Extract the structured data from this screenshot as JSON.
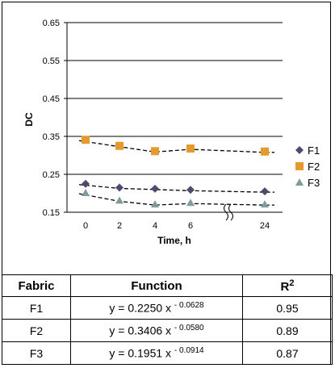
{
  "chart_data": {
    "type": "scatter",
    "xlabel": "Time, h",
    "ylabel": "DC",
    "x_tick_labels": [
      "0",
      "2",
      "4",
      "6",
      "24"
    ],
    "y_ticks": [
      "0.65",
      "0.55",
      "0.45",
      "0.35",
      "0.25",
      "0.15"
    ],
    "ylim": [
      0.15,
      0.65
    ],
    "x_axis_break": "between 6 and 24",
    "grid": "horizontal",
    "legend_position": "right",
    "series": [
      {
        "name": "F1",
        "marker": "diamond",
        "color": "#4f4a6e",
        "x": [
          0,
          2,
          4,
          6,
          24
        ],
        "y": [
          0.225,
          0.215,
          0.212,
          0.209,
          0.205
        ]
      },
      {
        "name": "F2",
        "marker": "square",
        "color": "#e59a2d",
        "x": [
          0,
          2,
          4,
          6,
          24
        ],
        "y": [
          0.341,
          0.325,
          0.311,
          0.318,
          0.31
        ]
      },
      {
        "name": "F3",
        "marker": "triangle",
        "color": "#7f9c9c",
        "x": [
          0,
          2,
          4,
          6,
          24
        ],
        "y": [
          0.201,
          0.181,
          0.171,
          0.175,
          0.171
        ]
      }
    ]
  },
  "table": {
    "headers": [
      "Fabric",
      "Function",
      "R",
      "2"
    ],
    "rows": [
      {
        "fabric": "F1",
        "func": "y = 0.2250 x",
        "exp": "- 0.0628",
        "r2": "0.95"
      },
      {
        "fabric": "F2",
        "func": "y = 0.3406 x",
        "exp": "- 0.0580",
        "r2": "0.89"
      },
      {
        "fabric": "F3",
        "func": "y = 0.1951 x",
        "exp": "- 0.0914",
        "r2": "0.87"
      }
    ]
  }
}
